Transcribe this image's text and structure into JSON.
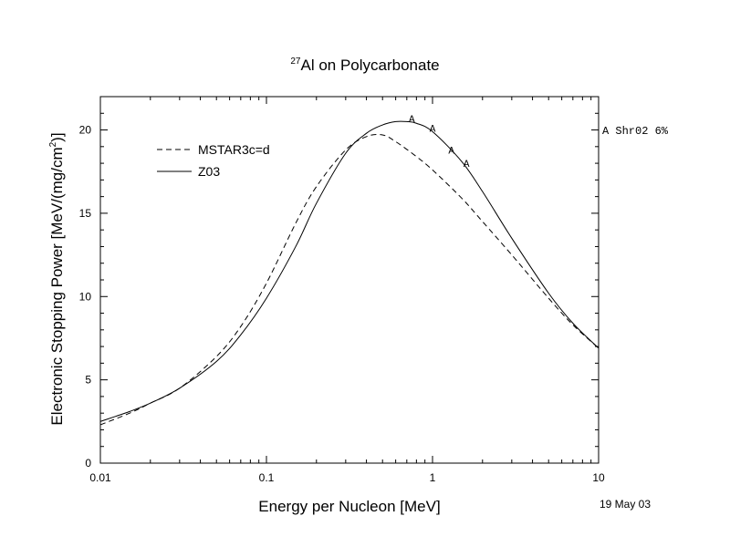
{
  "title": {
    "superscript": "27",
    "text": "Al on Polycarbonate"
  },
  "annotation": {
    "date": "19 May 03",
    "reference_note": "A Shr02 6%"
  },
  "chart_data": {
    "type": "line",
    "xlabel": "Energy per Nucleon [MeV]",
    "ylabel": {
      "prefix": "Electronic Stopping Power [MeV/(mg/cm",
      "sup": "2",
      "suffix": ")]"
    },
    "xscale": "log",
    "xlim": [
      0.01,
      10
    ],
    "ylim": [
      0,
      22
    ],
    "x_ticks": [
      {
        "value": 0.01,
        "label": "0.01"
      },
      {
        "value": 0.1,
        "label": "0.1"
      },
      {
        "value": 1,
        "label": "1"
      },
      {
        "value": 10,
        "label": "10"
      }
    ],
    "y_ticks": [
      {
        "value": 0,
        "label": "0"
      },
      {
        "value": 5,
        "label": "5"
      },
      {
        "value": 10,
        "label": "10"
      },
      {
        "value": 15,
        "label": "15"
      },
      {
        "value": 20,
        "label": "20"
      }
    ],
    "grid": false,
    "legend": {
      "position": "top-left"
    },
    "series": [
      {
        "name": "MSTAR3c=d",
        "style": "dashed",
        "x": [
          0.01,
          0.015,
          0.02,
          0.03,
          0.05,
          0.07,
          0.1,
          0.15,
          0.2,
          0.3,
          0.4,
          0.5,
          0.6,
          0.8,
          1.0,
          1.5,
          2.0,
          3.0,
          5.0,
          7.0,
          10.0
        ],
        "y": [
          2.3,
          3.0,
          3.6,
          4.5,
          6.4,
          8.2,
          10.8,
          14.4,
          16.6,
          18.8,
          19.6,
          19.7,
          19.3,
          18.4,
          17.6,
          15.9,
          14.5,
          12.5,
          9.9,
          8.3,
          6.9
        ]
      },
      {
        "name": "Z03",
        "style": "solid",
        "x": [
          0.01,
          0.015,
          0.02,
          0.03,
          0.05,
          0.07,
          0.1,
          0.15,
          0.2,
          0.3,
          0.4,
          0.5,
          0.6,
          0.7,
          0.8,
          1.0,
          1.5,
          2.0,
          3.0,
          5.0,
          7.0,
          10.0
        ],
        "y": [
          2.5,
          3.1,
          3.6,
          4.5,
          6.1,
          7.7,
          9.9,
          13.0,
          15.6,
          18.6,
          19.8,
          20.3,
          20.5,
          20.5,
          20.4,
          19.9,
          18.1,
          16.3,
          13.5,
          10.2,
          8.4,
          6.9
        ]
      }
    ],
    "data_points": {
      "name": "A",
      "marker": "A",
      "x": [
        0.75,
        1.0,
        1.3,
        1.6
      ],
      "y": [
        20.7,
        20.1,
        18.8,
        18.0
      ]
    }
  }
}
